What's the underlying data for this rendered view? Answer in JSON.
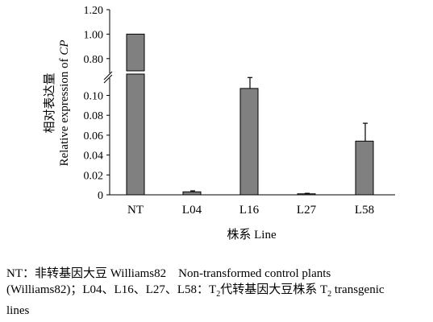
{
  "chart_data": {
    "type": "bar",
    "categories": [
      "NT",
      "L04",
      "L16",
      "L27",
      "L58"
    ],
    "values": [
      1.0,
      0.003,
      0.107,
      0.001,
      0.054
    ],
    "errors": [
      0,
      0.001,
      0.011,
      0.0005,
      0.018
    ],
    "xlabel": "株系 Line",
    "ylabel_cn": "相对表达量",
    "ylabel_en": "Relative expression of ",
    "ylabel_en_italic": "CP",
    "broken_axis": true,
    "lower_ylim": [
      0,
      0.12
    ],
    "lower_ticks": [
      "0",
      "0.02",
      "0.04",
      "0.06",
      "0.08",
      "0.10"
    ],
    "upper_ylim": [
      0.7,
      1.2
    ],
    "upper_ticks": [
      "0.80",
      "1.00",
      "1.20"
    ],
    "bar_color": "#808080",
    "grid": false
  },
  "caption": {
    "line1_a": "NT：非转基因大豆 Williams82　Non-transformed control plants",
    "line2_a": "(Williams82)；L04、L16、L27、L58：T",
    "line2_sub1": "2",
    "line2_b": "代转基因大豆株系 T",
    "line2_sub2": "2",
    "line2_c": " transgenic",
    "line3": "lines"
  }
}
